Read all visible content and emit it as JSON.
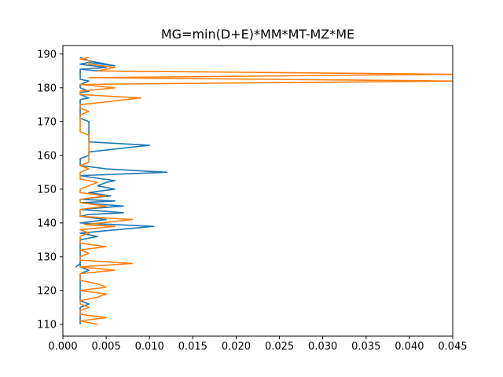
{
  "chart_data": {
    "type": "line",
    "title": "MG=min(D+E)*MM*MT-MZ*ME",
    "xlabel": "",
    "ylabel": "",
    "xlim": [
      0.0,
      0.045
    ],
    "ylim": [
      106.5,
      192.5
    ],
    "grid": false,
    "x_ticks": [
      "0.000",
      "0.005",
      "0.010",
      "0.015",
      "0.020",
      "0.025",
      "0.030",
      "0.035",
      "0.040",
      "0.045"
    ],
    "x_tick_values": [
      0.0,
      0.005,
      0.01,
      0.015,
      0.02,
      0.025,
      0.03,
      0.035,
      0.04,
      0.045
    ],
    "y_ticks": [
      "110",
      "120",
      "130",
      "140",
      "150",
      "160",
      "170",
      "180",
      "190"
    ],
    "y_tick_values": [
      110,
      120,
      130,
      140,
      150,
      160,
      170,
      180,
      190
    ],
    "series": [
      {
        "color": "#1f77b4",
        "x": [
          0.002,
          0.002,
          0.002,
          0.002,
          0.002,
          0.002,
          0.003,
          0.002,
          0.002,
          0.002,
          0.002,
          0.002,
          0.002,
          0.002,
          0.002,
          0.002,
          0.003,
          0.002,
          0.002,
          0.0015,
          0.002,
          0.002,
          0.002,
          0.002,
          0.002,
          0.002,
          0.002,
          0.002,
          0.004,
          0.002,
          0.0105,
          0.002,
          0.005,
          0.002,
          0.003,
          0.007,
          0.002,
          0.007,
          0.002,
          0.006,
          0.002,
          0.0055,
          0.003,
          0.006,
          0.004,
          0.005,
          0.006,
          0.002,
          0.012,
          0.005,
          0.002,
          0.002,
          0.002,
          0.003,
          0.003,
          0.01,
          0.003,
          0.003,
          0.003,
          0.003,
          0.003,
          0.003,
          0.003,
          0.002,
          0.002,
          0.002,
          0.002,
          0.002,
          0.002,
          0.002,
          0.003,
          0.002,
          0.002,
          0.003,
          0.002,
          0.002,
          0.003,
          0.002,
          0.002,
          0.002,
          0.002,
          0.002,
          0.004,
          0.002,
          0.005,
          0.002,
          0.003,
          0.006,
          0.003,
          0.002
        ],
        "y": [
          110,
          111,
          112,
          113,
          114,
          115,
          116,
          117,
          118,
          119,
          120,
          121,
          122,
          123,
          124,
          125,
          126,
          127,
          128,
          127,
          128,
          129,
          130,
          131,
          132,
          133,
          134,
          135,
          136,
          137,
          139,
          140,
          141,
          142,
          142.5,
          143,
          144,
          145,
          146,
          146.5,
          147,
          148,
          149,
          150,
          151,
          152,
          152.5,
          154,
          155,
          156,
          157,
          158,
          159,
          160,
          161,
          163,
          164,
          165,
          166,
          167,
          168,
          169,
          170,
          171,
          172,
          173,
          174,
          175,
          176,
          176.5,
          177,
          178,
          178.5,
          179,
          180,
          181,
          182,
          182.5,
          183,
          184,
          185,
          185.5,
          185,
          185.5,
          186,
          187,
          187.5,
          186.5,
          188,
          189
        ]
      },
      {
        "color": "#ff7f0e",
        "x": [
          0.004,
          0.002,
          0.005,
          0.002,
          0.002,
          0.003,
          0.002,
          0.002,
          0.004,
          0.005,
          0.002,
          0.005,
          0.004,
          0.002,
          0.002,
          0.006,
          0.002,
          0.008,
          0.002,
          0.002,
          0.003,
          0.002,
          0.005,
          0.002,
          0.002,
          0.002,
          0.003,
          0.002,
          0.006,
          0.0025,
          0.008,
          0.002,
          0.002,
          0.002,
          0.005,
          0.002,
          0.002,
          0.005,
          0.002,
          0.002,
          0.003,
          0.004,
          0.002,
          0.002,
          0.002,
          0.003,
          0.002,
          0.003,
          0.003,
          0.003,
          0.003,
          0.003,
          0.003,
          0.003,
          0.003,
          0.003,
          0.002,
          0.002,
          0.002,
          0.002,
          0.002,
          0.002,
          0.003,
          0.002,
          0.002,
          0.009,
          0.002,
          0.002,
          0.006,
          0.002,
          0.045,
          0.003,
          0.045,
          0.004,
          0.006,
          0.003,
          0.003,
          0.002,
          0.003
        ],
        "y": [
          110,
          111,
          112,
          113,
          114,
          115,
          116,
          117,
          118,
          119,
          120,
          121,
          122,
          123,
          125,
          126,
          127,
          128,
          129,
          130,
          131,
          132,
          133,
          134,
          135,
          136,
          137,
          138,
          139,
          139.5,
          141,
          142,
          143,
          144,
          145,
          146,
          147,
          148,
          149,
          150,
          151,
          152,
          153,
          154,
          155,
          156,
          157,
          158,
          159,
          160,
          161,
          162,
          163,
          164,
          165,
          166,
          167,
          168,
          169,
          170,
          171,
          172,
          173,
          174,
          175,
          177,
          178,
          179,
          180,
          181,
          182,
          183,
          184,
          185,
          186,
          187,
          188,
          188.5,
          189
        ]
      }
    ]
  }
}
